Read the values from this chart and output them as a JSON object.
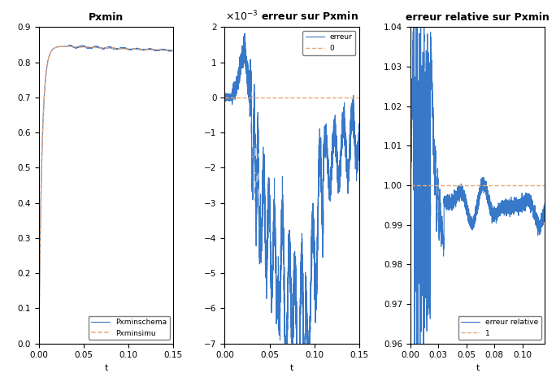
{
  "title1": "Pxmin",
  "title2": "erreur sur Pxmin",
  "title3": "erreur relative sur Pxmin",
  "xlabel": "t",
  "subplot1_xlim": [
    0,
    0.15
  ],
  "subplot1_ylim": [
    0,
    0.9
  ],
  "subplot1_yticks": [
    0,
    0.1,
    0.2,
    0.3,
    0.4,
    0.5,
    0.6,
    0.7,
    0.8,
    0.9
  ],
  "subplot2_xlim": [
    0,
    0.15
  ],
  "subplot2_ylim": [
    -7,
    2
  ],
  "subplot2_yticks": [
    -7,
    -6,
    -5,
    -4,
    -3,
    -2,
    -1,
    0,
    1,
    2
  ],
  "subplot3_xlim": [
    0,
    0.12
  ],
  "subplot3_ylim": [
    0.96,
    1.04
  ],
  "subplot3_yticks": [
    0.96,
    0.97,
    0.98,
    0.99,
    1.0,
    1.01,
    1.02,
    1.03,
    1.04
  ],
  "blue_color": "#3878c8",
  "orange_color": "#E8A87C",
  "line_width": 0.8,
  "legend1_labels": [
    "Pxminschema",
    "Pxminsimu"
  ],
  "legend2_labels": [
    "erreur",
    "0"
  ],
  "legend3_labels": [
    "erreur relative",
    "1"
  ],
  "title_fontsize": 9,
  "label_fontsize": 8,
  "tick_fontsize": 7.5
}
